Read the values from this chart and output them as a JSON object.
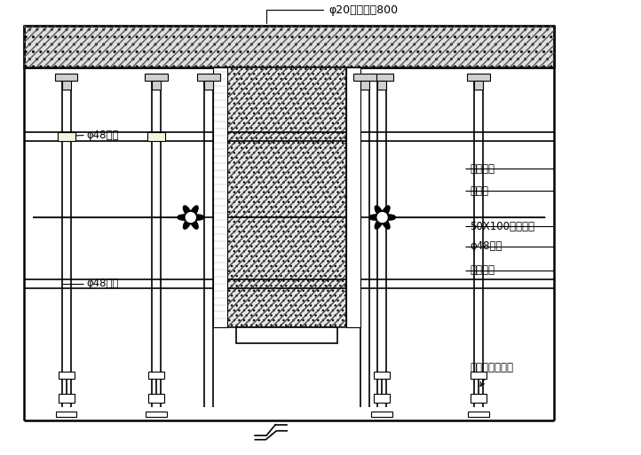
{
  "background_color": "#ffffff",
  "labels": {
    "top_annotation": "φ20钉筋排距800",
    "left_upper": "φ48钉管",
    "left_lower": "φ48钉管",
    "right_1": "砌结构架",
    "right_2": "九夹板",
    "right_3": "50X100木方横挡",
    "right_4": "φ48钉管",
    "right_5": "对拉螺栓",
    "right_6": "可调节钉支顶架"
  },
  "fig_width": 7.22,
  "fig_height": 5.13,
  "dpi": 100
}
